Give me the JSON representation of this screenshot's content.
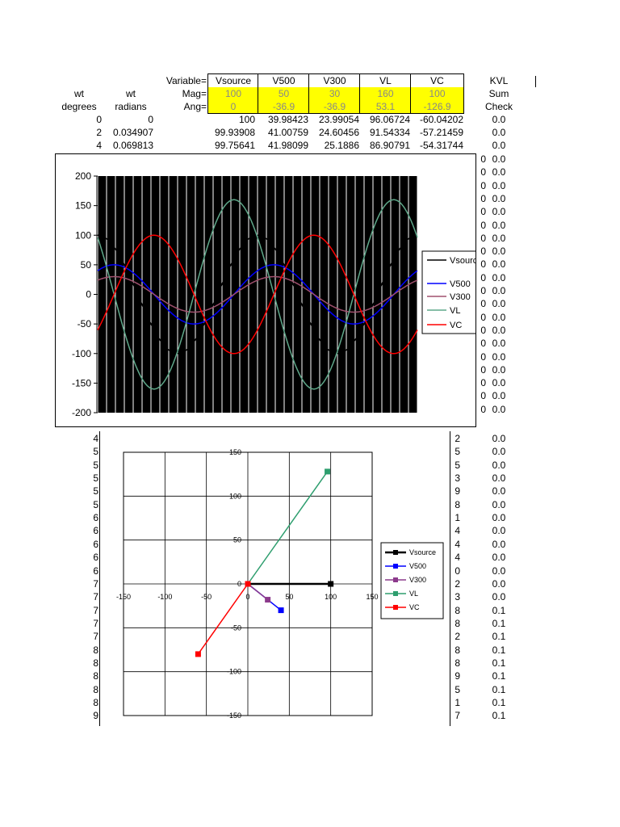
{
  "sheet": {
    "variable_label": "Variable=",
    "mag_label": "Mag=",
    "ang_label": "Ang=",
    "variables": [
      "Vsource",
      "V500",
      "V300",
      "VL",
      "VC"
    ],
    "mags": [
      "100",
      "50",
      "30",
      "160",
      "100"
    ],
    "angs": [
      "0",
      "-36.9",
      "-36.9",
      "53.1",
      "-126.9"
    ],
    "col_wt_deg": [
      "wt",
      "degrees"
    ],
    "col_wt_rad": [
      "wt",
      "radians"
    ],
    "col_kvl": [
      "KVL",
      "Sum",
      "Check"
    ],
    "rows": [
      [
        "0",
        "0",
        "100",
        "39.98423",
        "23.99054",
        "96.06724",
        "-60.04202",
        "0.0"
      ],
      [
        "2",
        "0.034907",
        "99.93908",
        "41.00759",
        "24.60456",
        "91.54334",
        "-57.21459",
        "0.0"
      ],
      [
        "4",
        "0.069813",
        "99.75641",
        "41.98099",
        "25.1886",
        "86.90791",
        "-54.31744",
        "0.0"
      ]
    ],
    "left_digits": [
      "4",
      "5",
      "5",
      "5",
      "5",
      "5",
      "6",
      "6",
      "6",
      "6",
      "6",
      "7",
      "7",
      "7",
      "7",
      "7",
      "8",
      "8",
      "8",
      "8",
      "8",
      "9"
    ],
    "right_digits_top": [
      "0",
      "0",
      "0",
      "0",
      "0",
      "0",
      "0",
      "0",
      "0",
      "0",
      "0",
      "0",
      "0",
      "0",
      "0",
      "0",
      "0",
      "0",
      "0",
      "0"
    ],
    "right_digits_bottom": [
      "2",
      "5",
      "5",
      "3",
      "9",
      "8",
      "1",
      "4",
      "4",
      "4",
      "0",
      "2",
      "3",
      "8",
      "8",
      "2",
      "8",
      "8",
      "9",
      "5",
      "1",
      "7"
    ],
    "kvl_bottom": [
      "0.0",
      "0.0",
      "0.0",
      "0.0",
      "0.0",
      "0.0",
      "0.0",
      "0.0",
      "0.0",
      "0.0",
      "0.0",
      "0.0",
      "0.0",
      "0.1",
      "0.1",
      "0.1",
      "0.1",
      "0.1",
      "0.1",
      "0.1",
      "0.1",
      "0.1"
    ],
    "kvl_top": [
      "0.0",
      "0.0",
      "0.0",
      "0.0",
      "0.0",
      "0.0",
      "0.0",
      "0.0",
      "0.0",
      "0.0",
      "0.0",
      "0.0",
      "0.0",
      "0.0",
      "0.0",
      "0.0",
      "0.0",
      "0.0",
      "0.0",
      "0.0"
    ]
  },
  "colors": {
    "Vsource": "#000000",
    "V500": "#0000ff",
    "V300": "#a0506e",
    "VL": "#5fa88a",
    "VC": "#ff0000",
    "VL_phasor": "#2e9e6e",
    "V300_phasor": "#8c3a8c",
    "highlight": "#ffff00"
  },
  "chart_data": [
    {
      "type": "line",
      "title": "",
      "x_unit": "degrees",
      "xlim": [
        0,
        720
      ],
      "ylim": [
        -200,
        200
      ],
      "yticks": [
        "200",
        "150",
        "100",
        "50",
        "0",
        "-50",
        "-100",
        "-150",
        "-200"
      ],
      "grid": "vertical lines every 20 degrees",
      "legend_position": "right",
      "series": [
        {
          "name": "Vsource",
          "amplitude": 100,
          "phase_deg": 0
        },
        {
          "name": "V500",
          "amplitude": 50,
          "phase_deg": -36.9
        },
        {
          "name": "V300",
          "amplitude": 30,
          "phase_deg": -36.9
        },
        {
          "name": "VL",
          "amplitude": 160,
          "phase_deg": 53.1
        },
        {
          "name": "VC",
          "amplitude": 100,
          "phase_deg": -126.9
        }
      ]
    },
    {
      "type": "scatter",
      "title": "",
      "xlim": [
        -150,
        150
      ],
      "ylim": [
        -150,
        150
      ],
      "xticks": [
        "-150",
        "-100",
        "-50",
        "0",
        "50",
        "100",
        "150"
      ],
      "yticks": [
        "150",
        "100",
        "50",
        "0",
        "-50",
        "-100",
        "-150"
      ],
      "grid": true,
      "legend_position": "right",
      "series": [
        {
          "name": "Vsource",
          "points": [
            [
              0,
              0
            ],
            [
              100,
              0
            ]
          ]
        },
        {
          "name": "V500",
          "points": [
            [
              0,
              0
            ],
            [
              40,
              -30
            ]
          ]
        },
        {
          "name": "V300",
          "points": [
            [
              0,
              0
            ],
            [
              24,
              -18
            ]
          ]
        },
        {
          "name": "VL",
          "points": [
            [
              0,
              0
            ],
            [
              96,
              128
            ]
          ]
        },
        {
          "name": "VC",
          "points": [
            [
              0,
              0
            ],
            [
              -60,
              -80
            ]
          ]
        }
      ]
    }
  ]
}
